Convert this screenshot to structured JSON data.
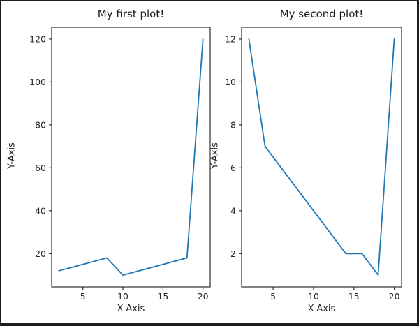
{
  "figure": {
    "background": "#ffffff",
    "border_color": "#1c1c1c",
    "text_color": "#262626",
    "axes_color": "#2e2e2e"
  },
  "chart_data": [
    {
      "type": "line",
      "title": "My first plot!",
      "xlabel": "X-Axis",
      "ylabel": "Y-Axis",
      "x": [
        2,
        8,
        10,
        18,
        20
      ],
      "y": [
        12,
        18,
        10,
        18,
        120
      ],
      "xlim": [
        1.1,
        20.9
      ],
      "ylim": [
        4.5,
        125.5
      ],
      "xticks": [
        5,
        10,
        15,
        20
      ],
      "yticks": [
        20,
        40,
        60,
        80,
        100,
        120
      ],
      "line_color": "#1f77b4",
      "grid": false,
      "legend": "none"
    },
    {
      "type": "line",
      "title": "My second plot!",
      "xlabel": "X-Axis",
      "ylabel": "Y-Axis",
      "x": [
        2,
        4,
        14,
        16,
        18,
        20
      ],
      "y": [
        12,
        7,
        2,
        2,
        1,
        12
      ],
      "xlim": [
        1.1,
        20.9
      ],
      "ylim": [
        0.45,
        12.55
      ],
      "xticks": [
        5,
        10,
        15,
        20
      ],
      "yticks": [
        2,
        4,
        6,
        8,
        10,
        12
      ],
      "line_color": "#1f77b4",
      "grid": false,
      "legend": "none"
    }
  ]
}
